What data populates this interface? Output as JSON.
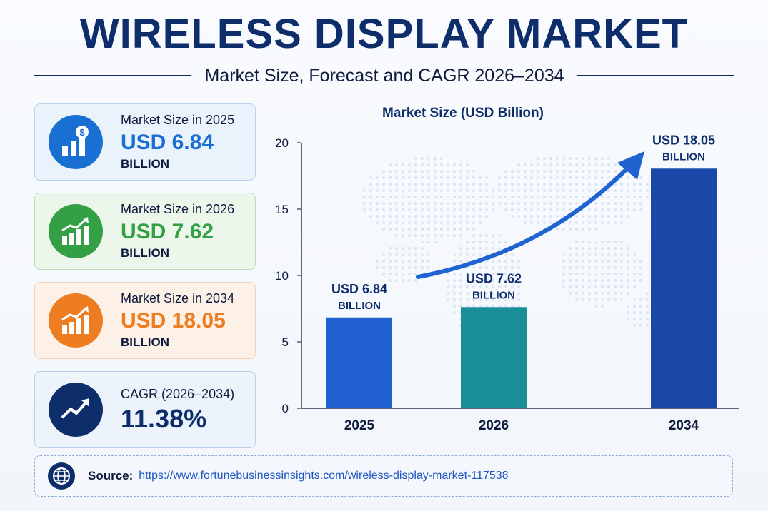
{
  "header": {
    "title": "WIRELESS DISPLAY MARKET",
    "subtitle": "Market Size, Forecast and CAGR 2026–2034"
  },
  "cards": [
    {
      "label": "Market Size in 2025",
      "value": "USD 6.84",
      "unit": "BILLION",
      "color": "#1a6fd3",
      "icon": "dollar-bar-chart-icon"
    },
    {
      "label": "Market Size in 2026",
      "value": "USD 7.62",
      "unit": "BILLION",
      "color": "#34a046",
      "icon": "growth-bar-chart-icon"
    },
    {
      "label": "Market Size in 2034",
      "value": "USD 18.05",
      "unit": "BILLION",
      "color": "#ee7d22",
      "icon": "growth-bar-chart-icon"
    },
    {
      "label": "CAGR (2026–2034)",
      "value": "11.38%",
      "color": "#0d2d6b",
      "icon": "trend-arrow-icon"
    }
  ],
  "chart_data": {
    "type": "bar",
    "title": "Market Size (USD Billion)",
    "categories": [
      "2025",
      "2026",
      "2034"
    ],
    "values": [
      6.84,
      7.62,
      18.05
    ],
    "bar_labels": [
      [
        "USD 6.84",
        "BILLION"
      ],
      [
        "USD 7.62",
        "BILLION"
      ],
      [
        "USD 18.05",
        "BILLION"
      ]
    ],
    "colors": [
      "#1f5fd1",
      "#1b8f99",
      "#1a47a8"
    ],
    "ylim": [
      0,
      20
    ],
    "yticks": [
      0,
      5,
      10,
      15,
      20
    ],
    "grid": false,
    "trend_arrow": true
  },
  "source": {
    "label": "Source:",
    "url": "https://www.fortunebusinessinsights.com/wireless-display-market-117538"
  }
}
